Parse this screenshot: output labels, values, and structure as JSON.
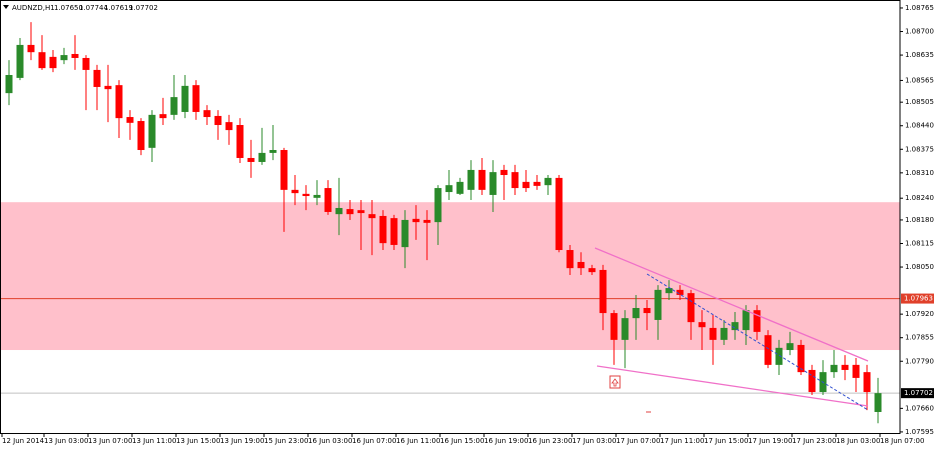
{
  "chart_data": {
    "type": "candlestick",
    "title": "AUDNZD,H1",
    "header_ohlc": [
      "1.07650",
      "1.07744",
      "1.07619",
      "1.07702"
    ],
    "categories": [
      "12 Jun 2014",
      null,
      null,
      "13 Jun 03:00",
      null,
      null,
      null,
      "13 Jun 07:00",
      null,
      null,
      null,
      "13 Jun 11:00",
      null,
      null,
      null,
      "13 Jun 15:00",
      null,
      null,
      null,
      "13 Jun 19:00",
      null,
      null,
      null,
      "15 Jun 23:00",
      null,
      null,
      null,
      "16 Jun 03:00",
      null,
      null,
      null,
      "16 Jun 07:00",
      null,
      null,
      null,
      "16 Jun 11:00",
      null,
      null,
      null,
      "16 Jun 15:00",
      null,
      null,
      null,
      "16 Jun 19:00",
      null,
      null,
      null,
      "16 Jun 23:00",
      null,
      null,
      null,
      "17 Jun 03:00",
      null,
      null,
      null,
      "17 Jun 07:00",
      null,
      null,
      null,
      "17 Jun 11:00",
      null,
      null,
      null,
      "17 Jun 15:00",
      null,
      null,
      null,
      "17 Jun 19:00",
      null,
      null,
      null,
      "17 Jun 23:00",
      null,
      null,
      null,
      "18 Jun 03:00",
      null,
      null,
      null,
      "18 Jun 07:00"
    ],
    "open": [
      1.0853,
      1.08572,
      1.08663,
      1.08643,
      1.0863,
      1.08621,
      1.08638,
      1.08627,
      1.08594,
      1.0855,
      1.08552,
      1.08464,
      1.08453,
      1.08379,
      1.08472,
      1.0847,
      1.08478,
      1.08552,
      1.08483,
      1.08467,
      1.0845,
      1.08442,
      1.08351,
      1.0834,
      1.08365,
      1.08373,
      1.08263,
      1.08252,
      1.08241,
      1.08268,
      1.08196,
      1.0821,
      1.08207,
      1.08196,
      1.08191,
      1.08185,
      1.08105,
      1.08183,
      1.0818,
      1.08174,
      1.08257,
      1.08252,
      1.08263,
      1.08318,
      1.08249,
      1.08318,
      1.08312,
      1.08285,
      1.08285,
      1.08276,
      1.08296,
      1.08097,
      1.08064,
      1.08047,
      1.08042,
      1.07923,
      1.07849,
      1.07909,
      1.07937,
      1.07904,
      1.07978,
      1.07987,
      1.07978,
      1.07898,
      1.07882,
      1.07849,
      1.07876,
      1.07876,
      1.07931,
      1.07862,
      1.0778,
      1.07821,
      1.07835,
      1.07766,
      1.07705,
      1.0776,
      1.0778,
      1.0778,
      1.0776,
      1.0765
    ],
    "high": [
      1.08621,
      1.08682,
      1.08726,
      1.0869,
      1.08649,
      1.08655,
      1.0869,
      1.08635,
      1.08608,
      1.08608,
      1.08566,
      1.08483,
      1.08461,
      1.08483,
      1.08517,
      1.0858,
      1.0858,
      1.08566,
      1.08497,
      1.08483,
      1.0847,
      1.08461,
      1.08401,
      1.08434,
      1.08442,
      1.08379,
      1.08304,
      1.08276,
      1.0829,
      1.0829,
      1.08296,
      1.08235,
      1.08235,
      1.08235,
      1.08207,
      1.08194,
      1.08207,
      1.08221,
      1.08207,
      1.08276,
      1.08318,
      1.08296,
      1.08345,
      1.08351,
      1.08345,
      1.08332,
      1.08332,
      1.08318,
      1.08304,
      1.08304,
      1.08304,
      1.08111,
      1.08091,
      1.08056,
      1.08056,
      1.07931,
      1.07931,
      1.07973,
      1.07959,
      1.08,
      1.08014,
      1.08,
      1.07987,
      1.07931,
      1.07918,
      1.07904,
      1.07926,
      1.07945,
      1.07945,
      1.07876,
      1.07849,
      1.07871,
      1.07849,
      1.0778,
      1.07793,
      1.07821,
      1.07807,
      1.07799,
      1.0778,
      1.07744
    ],
    "low": [
      1.08497,
      1.08566,
      1.08621,
      1.08594,
      1.08588,
      1.0861,
      1.08594,
      1.08483,
      1.08483,
      1.0845,
      1.08406,
      1.08401,
      1.08359,
      1.0834,
      1.08442,
      1.08456,
      1.08461,
      1.08456,
      1.08442,
      1.08401,
      1.08387,
      1.08337,
      1.08296,
      1.08332,
      1.08345,
      1.08147,
      1.08221,
      1.08207,
      1.08221,
      1.08194,
      1.08138,
      1.0818,
      1.08097,
      1.08083,
      1.08097,
      1.08097,
      1.08047,
      1.08125,
      1.08069,
      1.08111,
      1.08235,
      1.08249,
      1.08235,
      1.08249,
      1.08202,
      1.08235,
      1.08249,
      1.08257,
      1.08263,
      1.08249,
      1.08091,
      1.08028,
      1.08028,
      1.08028,
      1.07876,
      1.0778,
      1.07771,
      1.07849,
      1.07876,
      1.07849,
      1.07959,
      1.07959,
      1.07849,
      1.07821,
      1.0778,
      1.07835,
      1.07849,
      1.07835,
      1.07849,
      1.07771,
      1.07752,
      1.07807,
      1.07752,
      1.07697,
      1.07697,
      1.07744,
      1.07738,
      1.07705,
      1.07655,
      1.07619
    ],
    "close": [
      1.0858,
      1.08663,
      1.08643,
      1.08599,
      1.08599,
      1.08635,
      1.08627,
      1.08594,
      1.08547,
      1.08541,
      1.08461,
      1.08448,
      1.08373,
      1.0847,
      1.08461,
      1.08519,
      1.0855,
      1.08478,
      1.08464,
      1.08442,
      1.08428,
      1.08351,
      1.0834,
      1.08365,
      1.08373,
      1.08263,
      1.08254,
      1.08246,
      1.08249,
      1.08202,
      1.08213,
      1.08196,
      1.08199,
      1.08185,
      1.08116,
      1.08111,
      1.0818,
      1.08174,
      1.08172,
      1.08268,
      1.08276,
      1.08285,
      1.08318,
      1.08263,
      1.08312,
      1.08304,
      1.08268,
      1.08268,
      1.08274,
      1.08296,
      1.08097,
      1.08047,
      1.08047,
      1.08036,
      1.07923,
      1.07849,
      1.07909,
      1.07937,
      1.07923,
      1.07987,
      1.07992,
      1.07973,
      1.07898,
      1.07884,
      1.07849,
      1.07882,
      1.07898,
      1.07931,
      1.07871,
      1.0778,
      1.07827,
      1.0784,
      1.0776,
      1.07705,
      1.0776,
      1.0778,
      1.07766,
      1.07744,
      1.07705,
      1.07702
    ],
    "up_color": "#2a8a2a",
    "down_color": "#ff0000",
    "ylim": [
      1.07592,
      1.08787
    ],
    "yticks": [
      1.08765,
      {
        "value": 1.087,
        "label": "1.08700"
      },
      1.08635,
      1.08565,
      1.08505,
      {
        "value": 1.0844,
        "label": "1.08440"
      },
      1.08375,
      {
        "value": 1.0831,
        "label": "1.08310"
      },
      {
        "value": 1.0824,
        "label": "1.08240"
      },
      {
        "value": 1.0818,
        "label": "1.08180"
      },
      1.08115,
      {
        "value": 1.0805,
        "label": "1.08050"
      },
      {
        "value": 1.0792,
        "label": "1.07920"
      },
      1.07855,
      {
        "value": 1.0779,
        "label": "1.07790"
      },
      {
        "value": 1.0766,
        "label": "1.07660"
      },
      1.07595
    ],
    "zone": [
      1.08229,
      1.07821
    ],
    "zone_color": "#ffc0cb",
    "level": 1.07963,
    "level_color": "#e0402a",
    "current_price": 1.07702
  }
}
